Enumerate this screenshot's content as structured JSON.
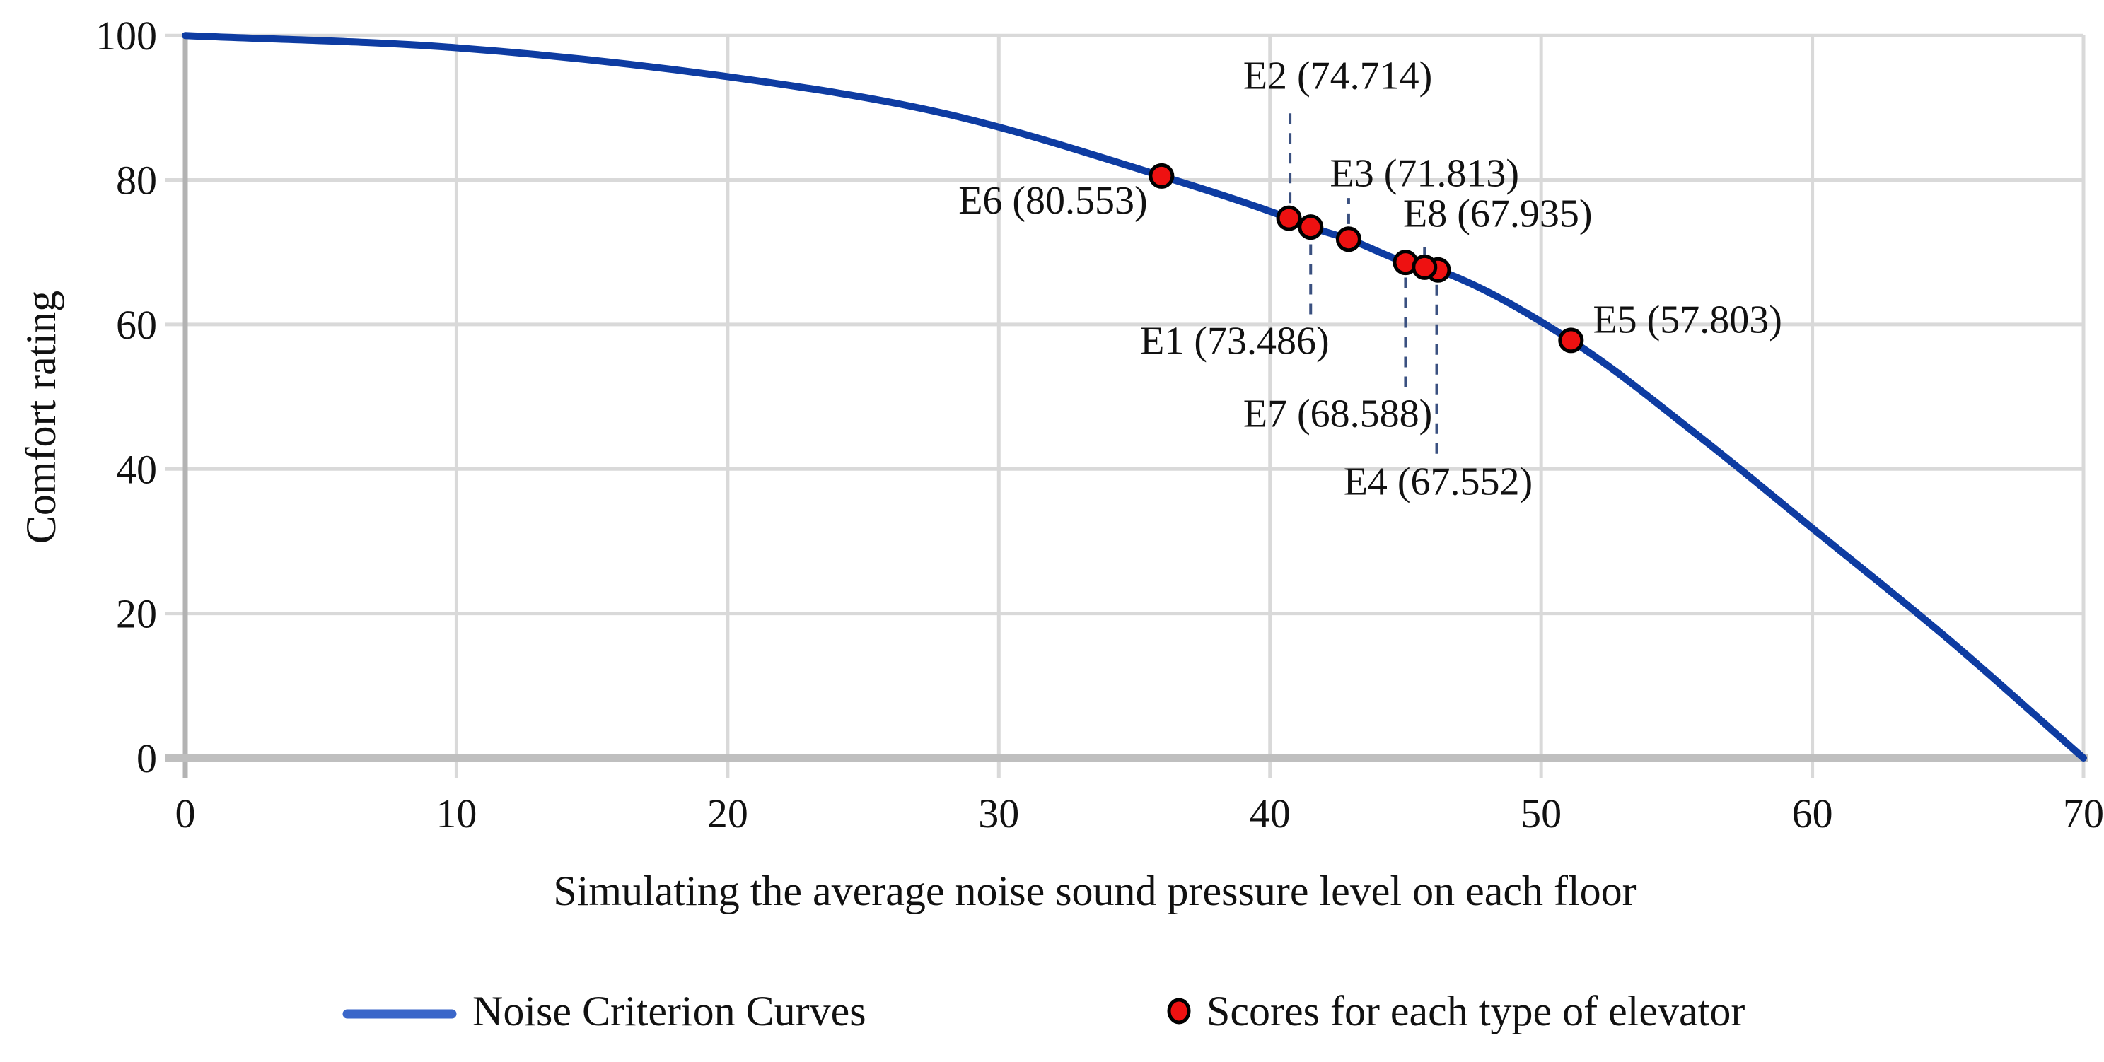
{
  "chart_data": {
    "type": "line+scatter",
    "title": "",
    "xlabel": "Simulating the average noise sound pressure level on each floor",
    "ylabel": "Comfort rating",
    "xlim": [
      0,
      70
    ],
    "ylim": [
      0,
      100
    ],
    "xticks": [
      0,
      10,
      20,
      30,
      40,
      50,
      60,
      70
    ],
    "yticks": [
      0,
      20,
      40,
      60,
      80,
      100
    ],
    "grid": true,
    "legend_position": "bottom",
    "colors": {
      "curve": "#0e3ca2",
      "legend_line": "#3a66c9",
      "point_fill": "#ee1111",
      "point_stroke": "#000000",
      "grid": "#d9d9d9",
      "x_axis": "#bfbfbf",
      "y_axis": "#b3b3b3",
      "leader": "#3a5080",
      "text": "#111111"
    },
    "legend": {
      "curve_label": "Noise Criterion Curves",
      "points_label": "Scores for each type of elevator"
    },
    "curve_name": "Noise Criterion Curves",
    "curve_anchors": [
      [
        0,
        100
      ],
      [
        10,
        98.3
      ],
      [
        20,
        94.3
      ],
      [
        28,
        89.2
      ],
      [
        36,
        80.553
      ],
      [
        40.7,
        74.714
      ],
      [
        41.5,
        73.486
      ],
      [
        42.9,
        71.813
      ],
      [
        45,
        68.588
      ],
      [
        45.7,
        67.935
      ],
      [
        46.2,
        67.552
      ],
      [
        51.1,
        57.803
      ],
      [
        56,
        44
      ],
      [
        60,
        31.8
      ],
      [
        65,
        16.5
      ],
      [
        70,
        0
      ]
    ],
    "points_name": "Scores for each type of elevator",
    "points": [
      {
        "id": "E1",
        "x": 41.5,
        "score": 73.486,
        "label": "E1 (73.486)",
        "label_at": [
          38.7,
          57.9
        ]
      },
      {
        "id": "E2",
        "x": 40.7,
        "score": 74.714,
        "label": "E2 (74.714)",
        "label_at": [
          42.5,
          94.6
        ]
      },
      {
        "id": "E3",
        "x": 42.9,
        "score": 71.813,
        "label": "E3 (71.813)",
        "label_at": [
          45.7,
          81.1
        ]
      },
      {
        "id": "E4",
        "x": 46.2,
        "score": 67.552,
        "label": "E4 (67.552)",
        "label_at": [
          46.2,
          38.4
        ]
      },
      {
        "id": "E5",
        "x": 51.1,
        "score": 57.803,
        "label": "E5 (57.803)",
        "label_at": [
          55.4,
          60.8
        ]
      },
      {
        "id": "E6",
        "x": 36.0,
        "score": 80.553,
        "label": "E6 (80.553)",
        "label_at": [
          32.0,
          77.3
        ]
      },
      {
        "id": "E7",
        "x": 45.0,
        "score": 68.588,
        "label": "E7 (68.588)",
        "label_at": [
          42.5,
          47.8
        ]
      },
      {
        "id": "E8",
        "x": 45.7,
        "score": 67.935,
        "label": "E8 (67.935)",
        "label_at": [
          48.4,
          75.5
        ]
      }
    ],
    "leaders": [
      {
        "for": "E2",
        "x": 40.74,
        "from": 76.8,
        "to": 90.2
      },
      {
        "for": "E3",
        "x": 42.9,
        "from": 73.9,
        "to": 77.5
      },
      {
        "for": "E8",
        "x": 45.7,
        "from": 69.2,
        "to": 72.0
      },
      {
        "for": "E1",
        "x": 41.5,
        "from": 71.1,
        "to": 60.9
      },
      {
        "for": "E7",
        "x": 45.0,
        "from": 66.5,
        "to": 50.5
      },
      {
        "for": "E4",
        "x": 46.15,
        "from": 65.5,
        "to": 41.0
      }
    ]
  }
}
